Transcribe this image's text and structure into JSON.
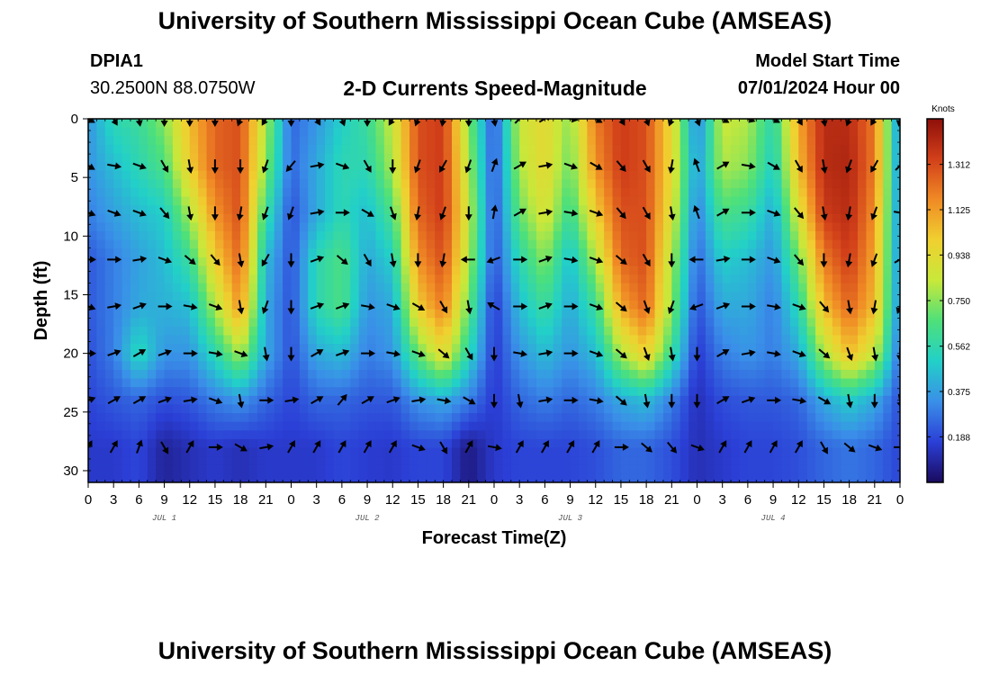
{
  "header": {
    "title": "University of Southern Mississippi Ocean Cube (AMSEAS)",
    "footer_title": "University of Southern Mississippi Ocean Cube (AMSEAS)",
    "station_id": "DPIA1",
    "coordinates": "30.2500N  88.0750W",
    "chart_title": "2-D Currents Speed-Magnitude",
    "model_start_label": "Model Start Time",
    "model_start_value": "07/01/2024 Hour 00"
  },
  "colors": {
    "scale": [
      "#1a0a5e",
      "#2b3fd6",
      "#3a8fe8",
      "#22d0c8",
      "#4ee07a",
      "#c8e83a",
      "#f0d030",
      "#f08a25",
      "#d2401a",
      "#8e0f0a"
    ]
  },
  "chart_data": {
    "type": "heatmap",
    "title": "2-D Currents Speed-Magnitude",
    "xlabel": "Forecast Time(Z)",
    "ylabel": "Depth (ft)",
    "x_tick_labels": [
      "0",
      "3",
      "6",
      "9",
      "12",
      "15",
      "18",
      "21",
      "0",
      "3",
      "6",
      "9",
      "12",
      "15",
      "18",
      "21",
      "0",
      "3",
      "6",
      "9",
      "12",
      "15",
      "18",
      "21",
      "0",
      "3",
      "6",
      "9",
      "12",
      "15",
      "18",
      "21",
      "0"
    ],
    "x_range_hours": [
      0,
      96
    ],
    "day_labels": [
      {
        "label": "JUL 1",
        "hour": 9
      },
      {
        "label": "JUL 2",
        "hour": 33
      },
      {
        "label": "JUL 3",
        "hour": 57
      },
      {
        "label": "JUL 4",
        "hour": 81
      }
    ],
    "y_ticks": [
      0,
      5,
      10,
      15,
      20,
      25,
      30
    ],
    "y_range": [
      0,
      31
    ],
    "depths": [
      0,
      4,
      8,
      12,
      16,
      20,
      24,
      28
    ],
    "colorbar": {
      "label": "Knots",
      "ticks": [
        0.188,
        0.375,
        0.562,
        0.75,
        0.938,
        1.125,
        1.312
      ],
      "range": [
        0,
        1.5
      ]
    },
    "hours": [
      0,
      3,
      6,
      9,
      12,
      15,
      18,
      21,
      24,
      27,
      30,
      33,
      36,
      39,
      42,
      45,
      48,
      51,
      54,
      57,
      60,
      63,
      66,
      69,
      72,
      75,
      78,
      81,
      84,
      87,
      90,
      93,
      96
    ],
    "speed_knots": [
      [
        0.35,
        0.55,
        0.6,
        0.75,
        1.05,
        1.25,
        1.3,
        0.8,
        0.25,
        0.35,
        0.5,
        0.6,
        0.85,
        1.3,
        1.35,
        0.75,
        0.2,
        0.85,
        0.95,
        0.75,
        1.2,
        1.35,
        1.3,
        0.95,
        0.3,
        0.85,
        0.8,
        0.55,
        1.1,
        1.4,
        1.4,
        1.2,
        0.3
      ],
      [
        0.35,
        0.45,
        0.55,
        0.65,
        1.0,
        1.25,
        1.3,
        0.75,
        0.25,
        0.4,
        0.55,
        0.55,
        0.8,
        1.3,
        1.35,
        0.8,
        0.2,
        0.8,
        0.95,
        0.7,
        1.15,
        1.35,
        1.3,
        0.95,
        0.35,
        0.8,
        0.75,
        0.5,
        1.05,
        1.4,
        1.42,
        1.2,
        0.3
      ],
      [
        0.3,
        0.38,
        0.45,
        0.5,
        0.8,
        1.15,
        1.3,
        0.6,
        0.2,
        0.4,
        0.55,
        0.45,
        0.65,
        1.25,
        1.35,
        0.85,
        0.2,
        0.7,
        0.9,
        0.6,
        1.0,
        1.3,
        1.3,
        0.9,
        0.3,
        0.65,
        0.6,
        0.4,
        0.9,
        1.35,
        1.4,
        1.15,
        0.3
      ],
      [
        0.22,
        0.3,
        0.38,
        0.45,
        0.6,
        1.0,
        1.25,
        0.45,
        0.2,
        0.55,
        0.65,
        0.4,
        0.5,
        1.15,
        1.3,
        0.8,
        0.2,
        0.55,
        0.75,
        0.45,
        0.8,
        1.25,
        1.3,
        0.8,
        0.25,
        0.5,
        0.45,
        0.35,
        0.7,
        1.2,
        1.35,
        1.1,
        0.3
      ],
      [
        0.22,
        0.3,
        0.4,
        0.42,
        0.45,
        0.8,
        1.15,
        0.4,
        0.2,
        0.55,
        0.65,
        0.35,
        0.4,
        1.0,
        1.2,
        0.7,
        0.15,
        0.45,
        0.6,
        0.4,
        0.6,
        1.1,
        1.25,
        0.75,
        0.2,
        0.4,
        0.4,
        0.3,
        0.55,
        1.05,
        1.25,
        1.05,
        0.3
      ],
      [
        0.2,
        0.3,
        0.55,
        0.35,
        0.35,
        0.55,
        0.8,
        0.4,
        0.2,
        0.4,
        0.45,
        0.3,
        0.35,
        0.7,
        0.95,
        0.55,
        0.15,
        0.35,
        0.45,
        0.35,
        0.45,
        0.8,
        1.0,
        0.6,
        0.15,
        0.3,
        0.35,
        0.3,
        0.4,
        0.8,
        1.05,
        0.85,
        0.25
      ],
      [
        0.18,
        0.22,
        0.25,
        0.2,
        0.22,
        0.3,
        0.35,
        0.25,
        0.18,
        0.25,
        0.25,
        0.22,
        0.22,
        0.35,
        0.4,
        0.3,
        0.15,
        0.25,
        0.3,
        0.25,
        0.3,
        0.4,
        0.45,
        0.3,
        0.12,
        0.2,
        0.22,
        0.22,
        0.25,
        0.4,
        0.5,
        0.4,
        0.2
      ],
      [
        0.15,
        0.15,
        0.18,
        0.08,
        0.12,
        0.15,
        0.12,
        0.15,
        0.15,
        0.15,
        0.18,
        0.16,
        0.15,
        0.18,
        0.18,
        0.05,
        0.15,
        0.18,
        0.18,
        0.18,
        0.2,
        0.25,
        0.25,
        0.2,
        0.12,
        0.15,
        0.18,
        0.18,
        0.2,
        0.25,
        0.28,
        0.25,
        0.18
      ]
    ],
    "direction_deg": [
      [
        120,
        150,
        170,
        180,
        180,
        180,
        200,
        210,
        180,
        150,
        160,
        180,
        210,
        200,
        190,
        180,
        170,
        45,
        60,
        100,
        120,
        150,
        160,
        200,
        160,
        120,
        110,
        120,
        150,
        170,
        200,
        210,
        190
      ],
      [
        120,
        100,
        110,
        150,
        170,
        180,
        180,
        200,
        220,
        80,
        110,
        150,
        180,
        200,
        210,
        200,
        20,
        60,
        80,
        110,
        120,
        140,
        150,
        190,
        340,
        60,
        100,
        120,
        150,
        170,
        200,
        210,
        45
      ],
      [
        110,
        110,
        110,
        140,
        170,
        180,
        190,
        200,
        200,
        80,
        90,
        120,
        160,
        190,
        200,
        180,
        10,
        60,
        80,
        100,
        110,
        140,
        150,
        170,
        340,
        60,
        90,
        110,
        140,
        170,
        190,
        200,
        100
      ],
      [
        90,
        90,
        80,
        110,
        130,
        140,
        170,
        210,
        180,
        70,
        130,
        150,
        170,
        180,
        190,
        270,
        250,
        90,
        70,
        100,
        110,
        130,
        150,
        180,
        270,
        80,
        90,
        110,
        140,
        180,
        190,
        200,
        60
      ],
      [
        110,
        80,
        70,
        90,
        100,
        110,
        170,
        200,
        180,
        70,
        70,
        100,
        110,
        120,
        150,
        170,
        300,
        90,
        70,
        90,
        110,
        130,
        160,
        200,
        250,
        70,
        90,
        100,
        110,
        140,
        170,
        190,
        200
      ],
      [
        90,
        70,
        60,
        70,
        90,
        100,
        110,
        170,
        180,
        60,
        70,
        90,
        100,
        110,
        130,
        150,
        180,
        100,
        80,
        90,
        110,
        130,
        160,
        170,
        180,
        60,
        80,
        100,
        110,
        130,
        160,
        170,
        180
      ],
      [
        70,
        60,
        60,
        70,
        80,
        110,
        170,
        90,
        80,
        60,
        40,
        60,
        70,
        80,
        100,
        120,
        180,
        170,
        80,
        90,
        100,
        130,
        170,
        180,
        180,
        60,
        70,
        90,
        100,
        120,
        170,
        180,
        170
      ],
      [
        30,
        30,
        20,
        150,
        30,
        90,
        120,
        80,
        30,
        30,
        30,
        30,
        30,
        110,
        150,
        30,
        100,
        30,
        30,
        30,
        30,
        90,
        130,
        140,
        110,
        30,
        30,
        30,
        30,
        150,
        130,
        110,
        90
      ]
    ]
  }
}
